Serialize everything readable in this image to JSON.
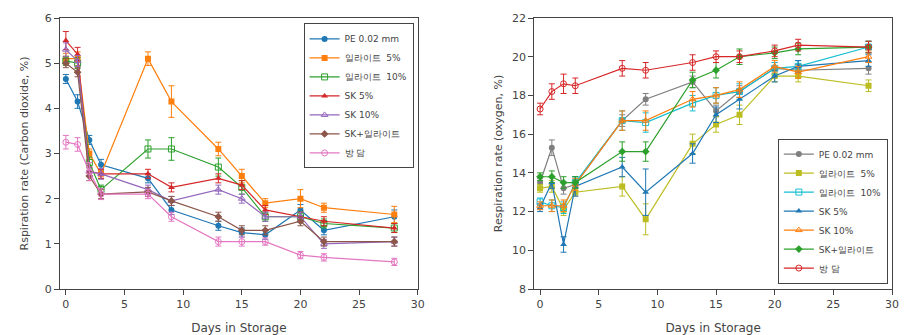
{
  "chart_data": [
    {
      "type": "line",
      "x_label": "Days in Storage",
      "y_label": "Rspiration rate (Carbon dioxide, %)",
      "xlim": [
        -0.5,
        30
      ],
      "ylim": [
        0,
        6
      ],
      "xticks": [
        0,
        5,
        10,
        15,
        20,
        25,
        30
      ],
      "yticks": [
        0,
        1,
        2,
        3,
        4,
        5,
        6
      ],
      "grid": false,
      "legend": "upper right",
      "x": [
        0,
        1,
        2,
        3,
        7,
        9,
        13,
        15,
        17,
        20,
        22,
        28
      ],
      "series": [
        {
          "name": "PE 0.02 mm",
          "marker": "circle",
          "values": [
            4.65,
            4.15,
            3.3,
            2.75,
            2.45,
            1.75,
            1.4,
            1.25,
            1.2,
            1.75,
            1.3,
            1.6
          ],
          "yerr": [
            0.1,
            0.15,
            0.1,
            0.12,
            0.1,
            0.1,
            0.1,
            0.1,
            0.1,
            0.12,
            0.1,
            0.15
          ]
        },
        {
          "name": "일라이트  5%",
          "marker": "square",
          "values": [
            5.1,
            5.1,
            3.0,
            2.55,
            5.1,
            4.15,
            3.1,
            2.5,
            1.9,
            2.0,
            1.8,
            1.65
          ],
          "yerr": [
            0.12,
            0.15,
            0.1,
            0.1,
            0.15,
            0.35,
            0.15,
            0.15,
            0.1,
            0.2,
            0.1,
            0.18
          ]
        },
        {
          "name": "일라이트  10%",
          "marker": "square-open",
          "values": [
            5.05,
            5.0,
            2.8,
            2.2,
            3.1,
            3.1,
            2.7,
            2.25,
            1.6,
            1.6,
            1.45,
            1.35
          ],
          "yerr": [
            0.1,
            0.12,
            0.12,
            0.1,
            0.2,
            0.25,
            0.2,
            0.15,
            0.1,
            0.12,
            0.1,
            0.1
          ]
        },
        {
          "name": "SK 5%",
          "marker": "triangle-up",
          "values": [
            5.5,
            5.2,
            2.6,
            2.55,
            2.55,
            2.25,
            2.45,
            2.3,
            1.75,
            1.6,
            1.5,
            1.35
          ],
          "yerr": [
            0.2,
            0.15,
            0.1,
            0.1,
            0.1,
            0.1,
            0.1,
            0.1,
            0.1,
            0.1,
            0.1,
            0.1
          ]
        },
        {
          "name": "SK 10%",
          "marker": "triangle-up-open",
          "values": [
            5.3,
            5.05,
            2.6,
            2.55,
            2.2,
            1.95,
            2.2,
            2.0,
            1.6,
            1.6,
            1.0,
            1.05
          ],
          "yerr": [
            0.15,
            0.12,
            0.1,
            0.12,
            0.1,
            0.1,
            0.1,
            0.1,
            0.1,
            0.1,
            0.1,
            0.1
          ]
        },
        {
          "name": "SK+일라이트",
          "marker": "diamond",
          "values": [
            5.0,
            4.8,
            2.5,
            2.1,
            2.15,
            1.95,
            1.6,
            1.3,
            1.3,
            1.5,
            1.05,
            1.05
          ],
          "yerr": [
            0.1,
            0.1,
            0.1,
            0.1,
            0.1,
            0.1,
            0.1,
            0.1,
            0.1,
            0.1,
            0.1,
            0.1
          ]
        },
        {
          "name": "방 담",
          "marker": "circle-open",
          "values": [
            3.25,
            3.2,
            2.6,
            2.1,
            2.1,
            1.6,
            1.05,
            1.05,
            1.05,
            0.75,
            0.7,
            0.6
          ],
          "yerr": [
            0.15,
            0.15,
            0.2,
            0.12,
            0.1,
            0.1,
            0.1,
            0.1,
            0.08,
            0.08,
            0.08,
            0.08
          ]
        }
      ]
    },
    {
      "type": "line",
      "x_label": "Days in Storage",
      "y_label": "Respiration rate (oxygen, %)",
      "xlim": [
        -0.5,
        30
      ],
      "ylim": [
        8,
        22
      ],
      "xticks": [
        0,
        5,
        10,
        15,
        20,
        25,
        30
      ],
      "yticks": [
        8,
        10,
        12,
        14,
        16,
        18,
        20,
        22
      ],
      "grid": false,
      "legend": "lower right",
      "x": [
        0,
        1,
        2,
        3,
        7,
        9,
        13,
        15,
        17,
        20,
        22,
        28
      ],
      "series": [
        {
          "name": "PE 0.02 mm",
          "marker": "circle",
          "values": [
            13.5,
            15.3,
            13.2,
            13.4,
            16.7,
            17.8,
            18.7,
            17.2,
            18.2,
            19.4,
            19.3,
            19.4
          ],
          "yerr": [
            0.2,
            0.4,
            0.3,
            0.2,
            0.3,
            0.3,
            0.3,
            0.3,
            0.3,
            0.3,
            0.3,
            0.3
          ]
        },
        {
          "name": "일라이트  5%",
          "marker": "square",
          "values": [
            13.2,
            13.3,
            12.1,
            13.0,
            13.3,
            11.6,
            15.5,
            16.5,
            17.0,
            19.0,
            19.0,
            18.5
          ],
          "yerr": [
            0.2,
            0.3,
            0.3,
            0.2,
            0.5,
            0.8,
            0.5,
            0.4,
            0.5,
            0.3,
            0.3,
            0.3
          ]
        },
        {
          "name": "일라이트  10%",
          "marker": "square-open",
          "values": [
            12.5,
            12.3,
            12.2,
            13.5,
            16.7,
            16.6,
            17.6,
            18.0,
            18.2,
            19.4,
            19.5,
            20.5
          ],
          "yerr": [
            0.2,
            0.3,
            0.3,
            0.3,
            0.5,
            0.5,
            0.4,
            0.4,
            0.4,
            0.3,
            0.3,
            0.3
          ]
        },
        {
          "name": "SK 5%",
          "marker": "triangle-up",
          "values": [
            12.2,
            13.5,
            10.3,
            13.3,
            14.3,
            13.0,
            15.0,
            17.0,
            17.8,
            19.0,
            19.5,
            19.8
          ],
          "yerr": [
            0.2,
            0.3,
            0.4,
            0.5,
            0.5,
            1.2,
            0.5,
            0.4,
            0.5,
            0.3,
            0.3,
            0.3
          ]
        },
        {
          "name": "SK 10%",
          "marker": "triangle-up-open",
          "values": [
            12.3,
            12.3,
            12.3,
            13.4,
            16.7,
            16.7,
            17.8,
            18.0,
            18.3,
            19.5,
            19.2,
            20.0
          ],
          "yerr": [
            0.2,
            0.3,
            0.3,
            0.3,
            0.5,
            0.5,
            0.4,
            0.4,
            0.4,
            0.3,
            0.3,
            0.3
          ]
        },
        {
          "name": "SK+일라이트",
          "marker": "diamond",
          "values": [
            13.8,
            13.8,
            13.5,
            13.5,
            15.1,
            15.1,
            18.8,
            19.3,
            20.0,
            20.2,
            20.4,
            20.5
          ],
          "yerr": [
            0.2,
            0.3,
            0.3,
            0.3,
            0.5,
            0.5,
            0.4,
            0.4,
            0.4,
            0.3,
            0.3,
            0.3
          ]
        },
        {
          "name": "방 담",
          "marker": "circle-open",
          "values": [
            17.3,
            18.2,
            18.6,
            18.5,
            19.4,
            19.3,
            19.7,
            20.0,
            20.0,
            20.3,
            20.6,
            20.5
          ],
          "yerr": [
            0.3,
            0.4,
            0.5,
            0.4,
            0.4,
            0.4,
            0.4,
            0.3,
            0.3,
            0.3,
            0.3,
            0.3
          ]
        }
      ]
    }
  ]
}
